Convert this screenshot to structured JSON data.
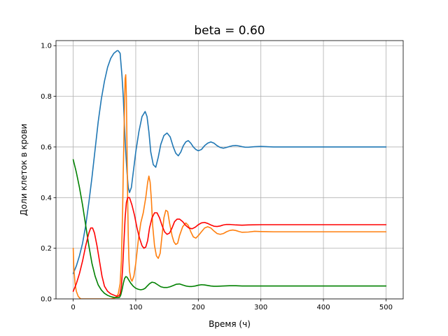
{
  "chart_data": {
    "type": "line",
    "title": "beta = 0.60",
    "xlabel": "Время (ч)",
    "ylabel": "Доли клеток в крови",
    "xlim": [
      -27.5,
      527.5
    ],
    "ylim": [
      0.0,
      1.02
    ],
    "x_ticks": [
      "0",
      "100",
      "200",
      "300",
      "400",
      "500"
    ],
    "y_ticks": [
      "0.0",
      "0.2",
      "0.4",
      "0.6",
      "0.8",
      "1.0"
    ],
    "grid": true,
    "series": [
      {
        "color": "#1f77b4",
        "points": [
          [
            0,
            0.1
          ],
          [
            5,
            0.13
          ],
          [
            10,
            0.17
          ],
          [
            15,
            0.22
          ],
          [
            20,
            0.29
          ],
          [
            25,
            0.38
          ],
          [
            30,
            0.48
          ],
          [
            35,
            0.59
          ],
          [
            40,
            0.7
          ],
          [
            45,
            0.79
          ],
          [
            50,
            0.86
          ],
          [
            55,
            0.915
          ],
          [
            60,
            0.95
          ],
          [
            65,
            0.97
          ],
          [
            70,
            0.98
          ],
          [
            72,
            0.98
          ],
          [
            75,
            0.97
          ],
          [
            78,
            0.88
          ],
          [
            80,
            0.8
          ],
          [
            82,
            0.68
          ],
          [
            84,
            0.58
          ],
          [
            86,
            0.5
          ],
          [
            88,
            0.44
          ],
          [
            90,
            0.42
          ],
          [
            93,
            0.44
          ],
          [
            96,
            0.5
          ],
          [
            100,
            0.58
          ],
          [
            105,
            0.66
          ],
          [
            110,
            0.72
          ],
          [
            115,
            0.74
          ],
          [
            118,
            0.72
          ],
          [
            121,
            0.66
          ],
          [
            124,
            0.58
          ],
          [
            128,
            0.53
          ],
          [
            132,
            0.52
          ],
          [
            136,
            0.56
          ],
          [
            140,
            0.61
          ],
          [
            145,
            0.645
          ],
          [
            150,
            0.655
          ],
          [
            155,
            0.64
          ],
          [
            160,
            0.6
          ],
          [
            164,
            0.575
          ],
          [
            168,
            0.565
          ],
          [
            172,
            0.58
          ],
          [
            176,
            0.605
          ],
          [
            180,
            0.62
          ],
          [
            184,
            0.625
          ],
          [
            188,
            0.615
          ],
          [
            192,
            0.6
          ],
          [
            196,
            0.59
          ],
          [
            200,
            0.585
          ],
          [
            205,
            0.59
          ],
          [
            210,
            0.605
          ],
          [
            215,
            0.615
          ],
          [
            220,
            0.62
          ],
          [
            225,
            0.615
          ],
          [
            230,
            0.605
          ],
          [
            235,
            0.598
          ],
          [
            240,
            0.595
          ],
          [
            245,
            0.598
          ],
          [
            250,
            0.602
          ],
          [
            255,
            0.605
          ],
          [
            260,
            0.606
          ],
          [
            265,
            0.604
          ],
          [
            270,
            0.601
          ],
          [
            275,
            0.599
          ],
          [
            280,
            0.599
          ],
          [
            290,
            0.601
          ],
          [
            300,
            0.602
          ],
          [
            320,
            0.6
          ],
          [
            350,
            0.6
          ],
          [
            400,
            0.6
          ],
          [
            450,
            0.6
          ],
          [
            500,
            0.6
          ]
        ]
      },
      {
        "color": "#ff7f0e",
        "points": [
          [
            0,
            0.2
          ],
          [
            1,
            0.12
          ],
          [
            3,
            0.06
          ],
          [
            5,
            0.03
          ],
          [
            8,
            0.01
          ],
          [
            12,
            0.0
          ],
          [
            20,
            0.0
          ],
          [
            40,
            0.0
          ],
          [
            60,
            0.0
          ],
          [
            68,
            0.005
          ],
          [
            72,
            0.02
          ],
          [
            75,
            0.06
          ],
          [
            77,
            0.15
          ],
          [
            79,
            0.35
          ],
          [
            80,
            0.5
          ],
          [
            82,
            0.75
          ],
          [
            83,
            0.87
          ],
          [
            84,
            0.885
          ],
          [
            85,
            0.8
          ],
          [
            86,
            0.6
          ],
          [
            87,
            0.4
          ],
          [
            88,
            0.25
          ],
          [
            89,
            0.16
          ],
          [
            90,
            0.11
          ],
          [
            92,
            0.08
          ],
          [
            94,
            0.07
          ],
          [
            97,
            0.09
          ],
          [
            100,
            0.14
          ],
          [
            104,
            0.23
          ],
          [
            108,
            0.3
          ],
          [
            112,
            0.34
          ],
          [
            116,
            0.4
          ],
          [
            119,
            0.46
          ],
          [
            121,
            0.485
          ],
          [
            123,
            0.46
          ],
          [
            125,
            0.39
          ],
          [
            127,
            0.29
          ],
          [
            130,
            0.21
          ],
          [
            133,
            0.17
          ],
          [
            136,
            0.16
          ],
          [
            139,
            0.18
          ],
          [
            142,
            0.25
          ],
          [
            145,
            0.32
          ],
          [
            148,
            0.35
          ],
          [
            151,
            0.345
          ],
          [
            154,
            0.3
          ],
          [
            158,
            0.25
          ],
          [
            161,
            0.225
          ],
          [
            164,
            0.215
          ],
          [
            167,
            0.22
          ],
          [
            170,
            0.25
          ],
          [
            175,
            0.285
          ],
          [
            180,
            0.3
          ],
          [
            184,
            0.29
          ],
          [
            188,
            0.265
          ],
          [
            192,
            0.245
          ],
          [
            196,
            0.24
          ],
          [
            200,
            0.25
          ],
          [
            205,
            0.265
          ],
          [
            210,
            0.28
          ],
          [
            215,
            0.285
          ],
          [
            220,
            0.28
          ],
          [
            225,
            0.268
          ],
          [
            230,
            0.258
          ],
          [
            235,
            0.255
          ],
          [
            240,
            0.258
          ],
          [
            245,
            0.265
          ],
          [
            250,
            0.27
          ],
          [
            255,
            0.272
          ],
          [
            260,
            0.27
          ],
          [
            265,
            0.266
          ],
          [
            270,
            0.263
          ],
          [
            280,
            0.264
          ],
          [
            290,
            0.267
          ],
          [
            300,
            0.266
          ],
          [
            320,
            0.265
          ],
          [
            350,
            0.265
          ],
          [
            400,
            0.265
          ],
          [
            450,
            0.265
          ],
          [
            500,
            0.265
          ]
        ]
      },
      {
        "color": "#008000",
        "points": [
          [
            0,
            0.55
          ],
          [
            5,
            0.5
          ],
          [
            10,
            0.44
          ],
          [
            15,
            0.37
          ],
          [
            20,
            0.29
          ],
          [
            25,
            0.21
          ],
          [
            30,
            0.14
          ],
          [
            35,
            0.09
          ],
          [
            40,
            0.055
          ],
          [
            45,
            0.035
          ],
          [
            50,
            0.022
          ],
          [
            55,
            0.014
          ],
          [
            60,
            0.009
          ],
          [
            65,
            0.006
          ],
          [
            70,
            0.005
          ],
          [
            74,
            0.006
          ],
          [
            76,
            0.015
          ],
          [
            78,
            0.035
          ],
          [
            80,
            0.06
          ],
          [
            82,
            0.08
          ],
          [
            84,
            0.088
          ],
          [
            86,
            0.086
          ],
          [
            88,
            0.078
          ],
          [
            92,
            0.062
          ],
          [
            96,
            0.05
          ],
          [
            100,
            0.042
          ],
          [
            104,
            0.038
          ],
          [
            108,
            0.036
          ],
          [
            112,
            0.038
          ],
          [
            115,
            0.042
          ],
          [
            118,
            0.05
          ],
          [
            122,
            0.06
          ],
          [
            126,
            0.066
          ],
          [
            130,
            0.064
          ],
          [
            135,
            0.056
          ],
          [
            140,
            0.048
          ],
          [
            145,
            0.045
          ],
          [
            150,
            0.045
          ],
          [
            155,
            0.048
          ],
          [
            160,
            0.053
          ],
          [
            165,
            0.058
          ],
          [
            170,
            0.059
          ],
          [
            175,
            0.055
          ],
          [
            180,
            0.051
          ],
          [
            185,
            0.049
          ],
          [
            190,
            0.049
          ],
          [
            195,
            0.051
          ],
          [
            200,
            0.054
          ],
          [
            205,
            0.056
          ],
          [
            210,
            0.055
          ],
          [
            215,
            0.053
          ],
          [
            220,
            0.051
          ],
          [
            225,
            0.05
          ],
          [
            230,
            0.05
          ],
          [
            240,
            0.051
          ],
          [
            250,
            0.052
          ],
          [
            260,
            0.052
          ],
          [
            270,
            0.051
          ],
          [
            280,
            0.051
          ],
          [
            300,
            0.051
          ],
          [
            350,
            0.051
          ],
          [
            400,
            0.051
          ],
          [
            450,
            0.051
          ],
          [
            500,
            0.051
          ]
        ]
      },
      {
        "color": "#ff0000",
        "points": [
          [
            0,
            0.03
          ],
          [
            5,
            0.06
          ],
          [
            10,
            0.1
          ],
          [
            15,
            0.15
          ],
          [
            20,
            0.21
          ],
          [
            25,
            0.26
          ],
          [
            28,
            0.28
          ],
          [
            31,
            0.28
          ],
          [
            34,
            0.26
          ],
          [
            38,
            0.21
          ],
          [
            42,
            0.15
          ],
          [
            46,
            0.09
          ],
          [
            50,
            0.05
          ],
          [
            55,
            0.03
          ],
          [
            60,
            0.02
          ],
          [
            65,
            0.015
          ],
          [
            70,
            0.01
          ],
          [
            73,
            0.012
          ],
          [
            75,
            0.02
          ],
          [
            77,
            0.05
          ],
          [
            79,
            0.12
          ],
          [
            81,
            0.22
          ],
          [
            83,
            0.32
          ],
          [
            85,
            0.38
          ],
          [
            87,
            0.4
          ],
          [
            90,
            0.4
          ],
          [
            94,
            0.37
          ],
          [
            98,
            0.33
          ],
          [
            102,
            0.28
          ],
          [
            106,
            0.24
          ],
          [
            110,
            0.21
          ],
          [
            113,
            0.2
          ],
          [
            116,
            0.205
          ],
          [
            119,
            0.23
          ],
          [
            122,
            0.28
          ],
          [
            126,
            0.32
          ],
          [
            130,
            0.34
          ],
          [
            134,
            0.34
          ],
          [
            138,
            0.32
          ],
          [
            142,
            0.29
          ],
          [
            146,
            0.265
          ],
          [
            150,
            0.255
          ],
          [
            154,
            0.26
          ],
          [
            158,
            0.28
          ],
          [
            162,
            0.305
          ],
          [
            166,
            0.315
          ],
          [
            170,
            0.315
          ],
          [
            175,
            0.305
          ],
          [
            180,
            0.29
          ],
          [
            185,
            0.28
          ],
          [
            190,
            0.277
          ],
          [
            195,
            0.283
          ],
          [
            200,
            0.293
          ],
          [
            205,
            0.3
          ],
          [
            210,
            0.302
          ],
          [
            215,
            0.298
          ],
          [
            220,
            0.292
          ],
          [
            225,
            0.287
          ],
          [
            230,
            0.286
          ],
          [
            235,
            0.288
          ],
          [
            240,
            0.292
          ],
          [
            245,
            0.294
          ],
          [
            250,
            0.294
          ],
          [
            260,
            0.292
          ],
          [
            270,
            0.291
          ],
          [
            280,
            0.292
          ],
          [
            300,
            0.293
          ],
          [
            350,
            0.293
          ],
          [
            400,
            0.293
          ],
          [
            450,
            0.293
          ],
          [
            500,
            0.293
          ]
        ]
      }
    ]
  }
}
